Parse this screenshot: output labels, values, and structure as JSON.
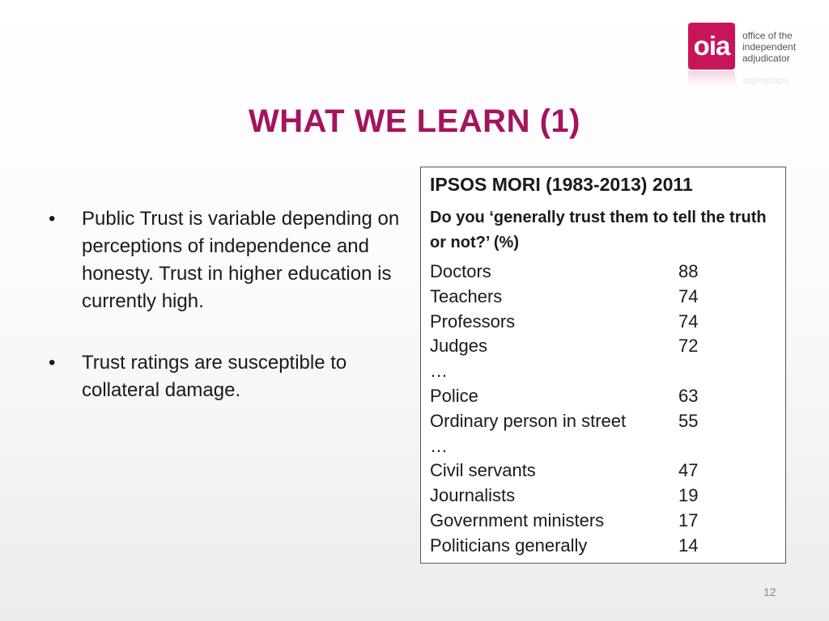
{
  "logo": {
    "mark": "oia",
    "lines": [
      "office of the",
      "independent",
      "adjudicator"
    ],
    "color": "#c8155a"
  },
  "title": "WHAT WE LEARN (1)",
  "bullets": [
    "Public Trust is variable depending on perceptions of independence and honesty. Trust in higher education is currently high.",
    "Trust ratings are susceptible to collateral damage."
  ],
  "bullet_marker": "•",
  "box": {
    "heading": "IPSOS MORI (1983-2013) 2011",
    "question": "Do you ‘generally trust them to tell the truth or not?’ (%)",
    "rows": [
      {
        "label": "Doctors",
        "value": "88"
      },
      {
        "label": "Teachers",
        "value": "74"
      },
      {
        "label": "Professors",
        "value": "74"
      },
      {
        "label": "Judges",
        "value": "72"
      },
      {
        "label": "…",
        "value": ""
      },
      {
        "label": "Police",
        "value": "63"
      },
      {
        "label": "Ordinary person in street",
        "value": "55"
      },
      {
        "label": "…",
        "value": ""
      },
      {
        "label": "Civil servants",
        "value": "47"
      },
      {
        "label": "Journalists",
        "value": "19"
      },
      {
        "label": "Government ministers",
        "value": "17"
      },
      {
        "label": "Politicians generally",
        "value": "14"
      }
    ]
  },
  "page_number": "12",
  "colors": {
    "title": "#a4145e",
    "accent": "#c8155a"
  }
}
